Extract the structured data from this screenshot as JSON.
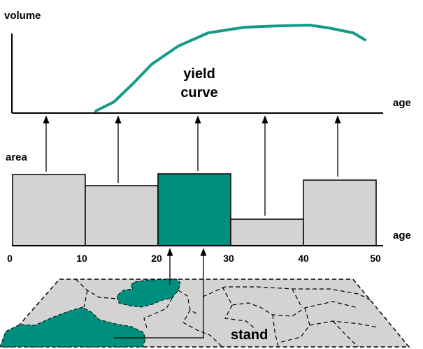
{
  "colors": {
    "bar_fill": "#d3d3d3",
    "highlight": "#008f7f",
    "curve": "#149b88",
    "stroke": "#000000"
  },
  "top_chart": {
    "y_label": "volume",
    "x_label": "age",
    "curve_label_line1": "yield",
    "curve_label_line2": "curve"
  },
  "bottom_chart": {
    "y_label": "area",
    "x_label": "age",
    "ticks": [
      "0",
      "10",
      "20",
      "30",
      "40",
      "50"
    ]
  },
  "map": {
    "stand_label": "stand"
  }
}
